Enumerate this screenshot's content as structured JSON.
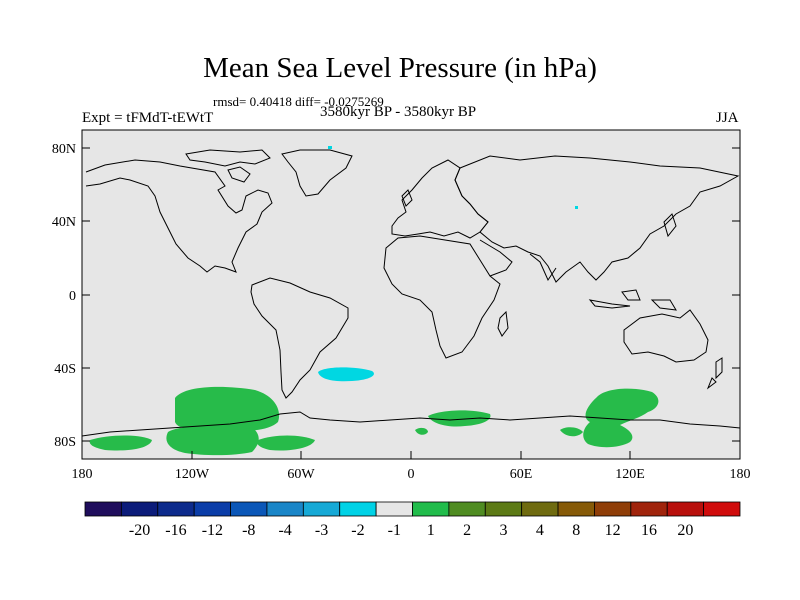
{
  "title": "Mean Sea Level Pressure (in hPa)",
  "stats": "rmsd= 0.40418 diff= -0.0275269",
  "experiment": "Expt = tFMdT-tEWtT",
  "period": "3580kyr BP - 3580kyr BP",
  "season": "JJA",
  "colors": {
    "background": "#e6e6e6",
    "coastline": "#000000",
    "anomaly_positive": "#27bb4a",
    "anomaly_negative": "#00d7e2"
  },
  "lat_ticks": [
    "80N",
    "40N",
    "0",
    "40S",
    "80S"
  ],
  "lon_ticks": [
    "180",
    "120W",
    "60W",
    "0",
    "60E",
    "120E",
    "180"
  ],
  "colorbar": {
    "colors": [
      "#1f0d5c",
      "#0c1c7a",
      "#0d2b8c",
      "#0b3da8",
      "#0b57b8",
      "#1a86c8",
      "#16a9d6",
      "#00d2e6",
      "#e6e6e6",
      "#21bc4b",
      "#4f8c22",
      "#5c7a15",
      "#6f6b10",
      "#865a08",
      "#8f3e08",
      "#a0240c",
      "#b8100c",
      "#d00c0c"
    ],
    "labels": [
      "-20",
      "-16",
      "-12",
      "-8",
      "-4",
      "-3",
      "-2",
      "-1",
      "1",
      "2",
      "3",
      "4",
      "8",
      "12",
      "16",
      "20"
    ]
  }
}
